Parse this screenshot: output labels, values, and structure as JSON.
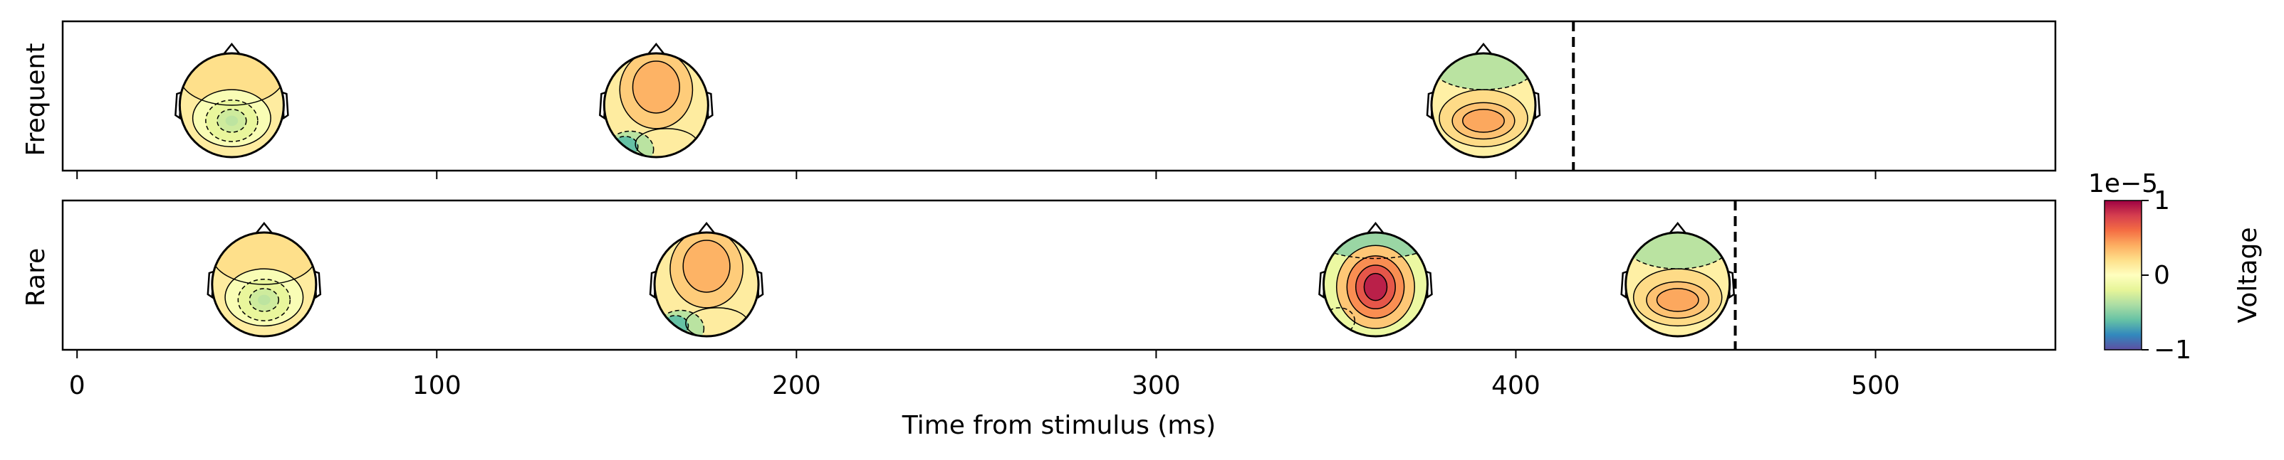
{
  "chart_data": {
    "type": "topomap-timeline",
    "xlabel": "Time from stimulus (ms)",
    "xlim": [
      -4,
      550
    ],
    "xticks": [
      0,
      100,
      200,
      300,
      400,
      500
    ],
    "xtick_labels": [
      "0",
      "100",
      "200",
      "300",
      "400",
      "500"
    ],
    "rows": [
      {
        "label": "Frequent",
        "dashed_line_time": 416,
        "topomaps": [
          {
            "time": 43,
            "pattern": "central-negative"
          },
          {
            "time": 161,
            "pattern": "frontal-positive"
          },
          {
            "time": 391,
            "pattern": "posterior-positive"
          }
        ]
      },
      {
        "label": "Rare",
        "dashed_line_time": 461,
        "topomaps": [
          {
            "time": 52,
            "pattern": "central-negative"
          },
          {
            "time": 175,
            "pattern": "frontal-positive"
          },
          {
            "time": 361,
            "pattern": "central-strong-positive"
          },
          {
            "time": 445,
            "pattern": "posterior-positive"
          }
        ]
      }
    ],
    "colorbar": {
      "label": "Voltage",
      "scale_label": "1e−5",
      "ticks": [
        1,
        0,
        -1
      ],
      "tick_labels": [
        "1",
        "0",
        "−1"
      ],
      "colormap": "Spectral_r",
      "colors": [
        "#5e4fa2",
        "#3288bd",
        "#66c2a5",
        "#abdda4",
        "#e6f598",
        "#ffffbf",
        "#fee08b",
        "#fdae61",
        "#f46d43",
        "#d53e4f",
        "#9e0142"
      ]
    }
  }
}
